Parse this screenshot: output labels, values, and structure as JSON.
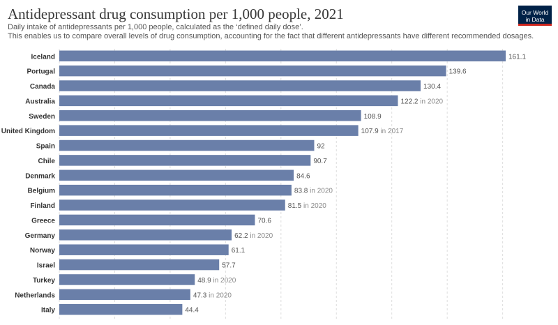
{
  "header": {
    "title": "Antidepressant drug consumption per 1,000 people, 2021",
    "subtitle_line1": "Daily intake of antidepressants per 1,000 people, calculated as the ‘defined daily dose’.",
    "subtitle_line2": "This enables us to compare overall levels of drug consumption, accounting for the fact that different antidepressants have different recommended dosages."
  },
  "logo": {
    "line1": "Our World",
    "line2": "in Data",
    "colors": {
      "background": "#002147",
      "accent": "#ce261e"
    }
  },
  "chart_data": {
    "type": "bar",
    "orientation": "horizontal",
    "categories": [
      "Iceland",
      "Portugal",
      "Canada",
      "Australia",
      "Sweden",
      "United Kingdom",
      "Spain",
      "Chile",
      "Denmark",
      "Belgium",
      "Finland",
      "Greece",
      "Germany",
      "Norway",
      "Israel",
      "Turkey",
      "Netherlands",
      "Italy"
    ],
    "values": [
      161.1,
      139.6,
      130.4,
      122.2,
      108.9,
      107.9,
      92,
      90.7,
      84.6,
      83.8,
      81.5,
      70.6,
      62.2,
      61.1,
      57.7,
      48.9,
      47.3,
      44.4
    ],
    "value_labels": [
      "161.1",
      "139.6",
      "130.4",
      "122.2",
      "108.9",
      "107.9",
      "92",
      "90.7",
      "84.6",
      "83.8",
      "81.5",
      "70.6",
      "62.2",
      "61.1",
      "57.7",
      "48.9",
      "47.3",
      "44.4"
    ],
    "year_notes": [
      "",
      "",
      "",
      "in 2020",
      "",
      "in 2017",
      "",
      "",
      "",
      "in 2020",
      "in 2020",
      "",
      "in 2020",
      "",
      "",
      "in 2020",
      "in 2020",
      ""
    ],
    "xlim": [
      0,
      161.1
    ],
    "grid": true,
    "colors": {
      "bar": "#6a7fa9",
      "label": "#555555",
      "note": "#8a8a8a",
      "grid": "#dddddd"
    }
  }
}
